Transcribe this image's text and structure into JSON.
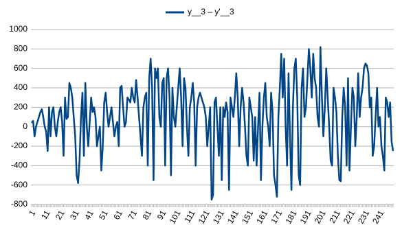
{
  "chart_data": {
    "type": "line",
    "series": [
      {
        "name": "y__3 – y'__3",
        "color": "#004586",
        "values": [
          40,
          60,
          -100,
          0,
          50,
          100,
          150,
          180,
          100,
          0,
          -50,
          -250,
          200,
          -100,
          150,
          200,
          0,
          -100,
          50,
          150,
          200,
          50,
          -300,
          300,
          80,
          100,
          450,
          400,
          300,
          100,
          -100,
          -500,
          -580,
          -350,
          100,
          350,
          -300,
          450,
          0,
          -200,
          50,
          300,
          150,
          200,
          100,
          -200,
          -100,
          0,
          -450,
          -200,
          250,
          350,
          150,
          0,
          100,
          200,
          50,
          -100,
          0,
          50,
          -200,
          400,
          420,
          200,
          0,
          50,
          300,
          280,
          250,
          400,
          300,
          250,
          480,
          300,
          100,
          -100,
          -300,
          200,
          300,
          350,
          -400,
          500,
          700,
          400,
          -550,
          600,
          500,
          600,
          100,
          0,
          450,
          500,
          -400,
          500,
          600,
          300,
          -500,
          400,
          100,
          0,
          200,
          400,
          600,
          300,
          -200,
          500,
          400,
          0,
          -300,
          200,
          300,
          450,
          250,
          -400,
          200,
          300,
          350,
          300,
          250,
          200,
          100,
          -200,
          0,
          200,
          -750,
          -700,
          250,
          300,
          0,
          -300,
          200,
          -550,
          200,
          100,
          250,
          150,
          -650,
          300,
          200,
          100,
          300,
          550,
          300,
          -200,
          200,
          400,
          250,
          0,
          -300,
          -400,
          300,
          200,
          100,
          -350,
          100,
          -400,
          0,
          350,
          -550,
          0,
          300,
          450,
          100,
          0,
          -200,
          350,
          150,
          -500,
          -600,
          -720,
          100,
          400,
          750,
          300,
          700,
          0,
          -400,
          550,
          -100,
          -650,
          200,
          600,
          700,
          300,
          -500,
          -600,
          400,
          600,
          100,
          200,
          500,
          800,
          600,
          300,
          750,
          500,
          400,
          100,
          0,
          820,
          300,
          -100,
          200,
          600,
          300,
          0,
          -350,
          -400,
          400,
          300,
          150,
          -300,
          -550,
          -560,
          100,
          400,
          200,
          -400,
          500,
          -450,
          0,
          400,
          300,
          -200,
          100,
          550,
          100,
          300,
          400,
          600,
          650,
          630,
          550,
          200,
          300,
          -300,
          -200,
          100,
          400,
          0,
          100,
          -200,
          -300,
          -450,
          300,
          250,
          100,
          250,
          -150,
          -250
        ]
      }
    ],
    "categories": [
      "1",
      null,
      null,
      null,
      null,
      null,
      null,
      null,
      null,
      null,
      "11",
      null,
      null,
      null,
      null,
      null,
      null,
      null,
      null,
      null,
      "21",
      null,
      null,
      null,
      null,
      null,
      null,
      null,
      null,
      null,
      "31",
      null,
      null,
      null,
      null,
      null,
      null,
      null,
      null,
      null,
      "41",
      null,
      null,
      null,
      null,
      null,
      null,
      null,
      null,
      null,
      "51",
      null,
      null,
      null,
      null,
      null,
      null,
      null,
      null,
      null,
      "61",
      null,
      null,
      null,
      null,
      null,
      null,
      null,
      null,
      null,
      "71",
      null,
      null,
      null,
      null,
      null,
      null,
      null,
      null,
      null,
      "81",
      null,
      null,
      null,
      null,
      null,
      null,
      null,
      null,
      null,
      "91",
      null,
      null,
      null,
      null,
      null,
      null,
      null,
      null,
      null,
      "101",
      null,
      null,
      null,
      null,
      null,
      null,
      null,
      null,
      null,
      "111",
      null,
      null,
      null,
      null,
      null,
      null,
      null,
      null,
      null,
      "121",
      null,
      null,
      null,
      null,
      null,
      null,
      null,
      null,
      null,
      "131",
      null,
      null,
      null,
      null,
      null,
      null,
      null,
      null,
      null,
      "141",
      null,
      null,
      null,
      null,
      null,
      null,
      null,
      null,
      null,
      "151",
      null,
      null,
      null,
      null,
      null,
      null,
      null,
      null,
      null,
      "161",
      null,
      null,
      null,
      null,
      null,
      null,
      null,
      null,
      null,
      "171",
      null,
      null,
      null,
      null,
      null,
      null,
      null,
      null,
      null,
      "181",
      null,
      null,
      null,
      null,
      null,
      null,
      null,
      null,
      null,
      "191",
      null,
      null,
      null,
      null,
      null,
      null,
      null,
      null,
      null,
      "201",
      null,
      null,
      null,
      null,
      null,
      null,
      null,
      null,
      null,
      "211",
      null,
      null,
      null,
      null,
      null,
      null,
      null,
      null,
      null,
      "221",
      null,
      null,
      null,
      null,
      null,
      null,
      null,
      null,
      null,
      "231",
      null,
      null,
      null,
      null,
      null,
      null,
      null,
      null,
      null,
      "241",
      null,
      null,
      null,
      null,
      null,
      null,
      null,
      null,
      null
    ],
    "ylim": [
      -800,
      1000
    ],
    "yticks": [
      -800,
      -600,
      -400,
      -200,
      0,
      200,
      400,
      600,
      800,
      1000
    ],
    "grid": true,
    "legend": "top"
  }
}
